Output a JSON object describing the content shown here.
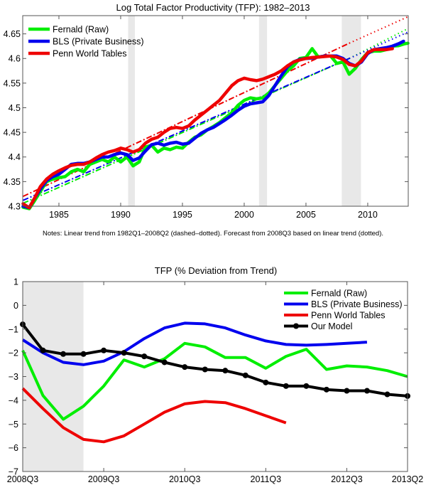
{
  "chart_data": [
    {
      "type": "line",
      "title": "Log Total Factor Productivity (TFP): 1982–2013",
      "xlabel": "",
      "ylabel": "",
      "xlim": [
        1982.07,
        2013.28
      ],
      "ylim": [
        4.3,
        4.687
      ],
      "xticks": [
        1985,
        1990,
        1995,
        2000,
        2005,
        2010
      ],
      "xtick_labels": [
        "1985",
        "1990",
        "1995",
        "2000",
        "2005",
        "2010"
      ],
      "yticks": [
        4.3,
        4.35,
        4.4,
        4.45,
        4.5,
        4.55,
        4.6,
        4.65
      ],
      "ytick_labels": [
        "4.3",
        "4.35",
        "4.4",
        "4.45",
        "4.5",
        "4.55",
        "4.6",
        "4.65"
      ],
      "grid": false,
      "legend_position": "top-left",
      "recessions": [
        [
          1990.6,
          1991.15
        ],
        [
          2001.2,
          2001.85
        ],
        [
          2007.9,
          2009.45
        ]
      ],
      "note": "Notes: Linear trend from 1982Q1–2008Q2 (dashed–dotted). Forecast from 2008Q3 based on linear trend (dotted).",
      "series": [
        {
          "name": "Fernald (Raw)",
          "color": "#00ee00",
          "x": [
            1982.1,
            1982.6,
            1983.0,
            1983.5,
            1984.0,
            1984.5,
            1985.0,
            1985.5,
            1986.0,
            1986.5,
            1987.0,
            1987.5,
            1988.0,
            1988.5,
            1989.0,
            1989.5,
            1990.0,
            1990.5,
            1991.0,
            1991.5,
            1992.0,
            1992.5,
            1993.0,
            1993.5,
            1994.0,
            1994.5,
            1995.0,
            1995.5,
            1996.0,
            1996.5,
            1997.0,
            1997.5,
            1998.0,
            1998.5,
            1999.0,
            1999.5,
            2000.0,
            2000.5,
            2001.0,
            2001.5,
            2002.0,
            2002.5,
            2003.0,
            2003.5,
            2004.0,
            2004.5,
            2005.0,
            2005.5,
            2006.0,
            2006.5,
            2007.0,
            2007.5,
            2008.0,
            2008.5,
            2009.0,
            2009.5,
            2010.0,
            2010.5,
            2011.0,
            2011.5,
            2012.0,
            2012.5,
            2013.0,
            2013.25
          ],
          "values": [
            4.298,
            4.295,
            4.31,
            4.33,
            4.35,
            4.355,
            4.358,
            4.36,
            4.37,
            4.375,
            4.37,
            4.385,
            4.39,
            4.395,
            4.39,
            4.4,
            4.39,
            4.4,
            4.382,
            4.39,
            4.42,
            4.424,
            4.41,
            4.418,
            4.415,
            4.42,
            4.418,
            4.43,
            4.44,
            4.445,
            4.455,
            4.462,
            4.47,
            4.48,
            4.49,
            4.505,
            4.515,
            4.52,
            4.518,
            4.52,
            4.53,
            4.545,
            4.56,
            4.575,
            4.585,
            4.6,
            4.602,
            4.62,
            4.603,
            4.605,
            4.605,
            4.59,
            4.593,
            4.568,
            4.58,
            4.598,
            4.612,
            4.615,
            4.615,
            4.618,
            4.625,
            4.626,
            4.63,
            4.631
          ]
        },
        {
          "name": "BLS (Private Business)",
          "color": "#0000ee",
          "x": [
            1982.1,
            1982.6,
            1983.0,
            1983.5,
            1984.0,
            1984.5,
            1985.0,
            1985.5,
            1986.0,
            1986.5,
            1987.0,
            1987.5,
            1988.0,
            1988.5,
            1989.0,
            1989.5,
            1990.0,
            1990.5,
            1991.0,
            1991.5,
            1992.0,
            1992.5,
            1993.0,
            1993.5,
            1994.0,
            1994.5,
            1995.0,
            1995.5,
            1996.0,
            1996.5,
            1997.0,
            1997.5,
            1998.0,
            1998.5,
            1999.0,
            1999.5,
            2000.0,
            2000.5,
            2001.0,
            2001.5,
            2002.0,
            2002.5,
            2003.0,
            2003.5,
            2004.0,
            2004.5,
            2005.0,
            2005.5,
            2006.0,
            2006.5,
            2007.0,
            2007.5,
            2008.0,
            2008.5,
            2009.0,
            2009.5,
            2010.0,
            2010.5,
            2011.0,
            2011.5,
            2012.0,
            2012.5,
            2012.9
          ],
          "values": [
            4.3,
            4.297,
            4.315,
            4.335,
            4.352,
            4.36,
            4.365,
            4.375,
            4.385,
            4.387,
            4.387,
            4.39,
            4.395,
            4.4,
            4.4,
            4.405,
            4.408,
            4.405,
            4.393,
            4.398,
            4.412,
            4.425,
            4.428,
            4.424,
            4.428,
            4.43,
            4.426,
            4.428,
            4.438,
            4.448,
            4.455,
            4.46,
            4.468,
            4.476,
            4.485,
            4.495,
            4.503,
            4.508,
            4.51,
            4.512,
            4.525,
            4.545,
            4.565,
            4.583,
            4.593,
            4.598,
            4.6,
            4.601,
            4.603,
            4.605,
            4.605,
            4.605,
            4.6,
            4.59,
            4.585,
            4.593,
            4.61,
            4.618,
            4.62,
            4.622,
            4.625,
            4.63,
            4.635
          ]
        },
        {
          "name": "Penn World Tables",
          "color": "#ee0000",
          "x": [
            1982.1,
            1982.6,
            1983.0,
            1983.5,
            1984.0,
            1984.5,
            1985.0,
            1985.5,
            1986.0,
            1986.5,
            1987.0,
            1987.5,
            1988.0,
            1988.5,
            1989.0,
            1989.5,
            1990.0,
            1990.5,
            1991.0,
            1991.5,
            1992.0,
            1992.5,
            1993.0,
            1993.5,
            1994.0,
            1994.5,
            1995.0,
            1995.5,
            1996.0,
            1996.5,
            1997.0,
            1997.5,
            1998.0,
            1998.5,
            1999.0,
            1999.5,
            2000.0,
            2000.5,
            2001.0,
            2001.5,
            2002.0,
            2002.5,
            2003.0,
            2003.5,
            2004.0,
            2004.5,
            2005.0,
            2005.5,
            2006.0,
            2006.5,
            2007.0,
            2007.5,
            2008.0,
            2008.5,
            2009.0,
            2009.5,
            2010.0,
            2010.5,
            2011.0,
            2011.5,
            2012.0
          ],
          "values": [
            4.305,
            4.297,
            4.315,
            4.34,
            4.355,
            4.365,
            4.372,
            4.378,
            4.383,
            4.385,
            4.385,
            4.39,
            4.398,
            4.405,
            4.41,
            4.413,
            4.418,
            4.415,
            4.41,
            4.415,
            4.428,
            4.436,
            4.44,
            4.45,
            4.458,
            4.46,
            4.458,
            4.463,
            4.475,
            4.485,
            4.495,
            4.505,
            4.515,
            4.53,
            4.545,
            4.555,
            4.56,
            4.557,
            4.555,
            4.558,
            4.563,
            4.568,
            4.575,
            4.585,
            4.593,
            4.597,
            4.6,
            4.602,
            4.603,
            4.604,
            4.605,
            4.603,
            4.598,
            4.588,
            4.585,
            4.595,
            4.612,
            4.618,
            4.618,
            4.618,
            4.62
          ]
        }
      ],
      "trends": [
        {
          "name": "Fernald trend",
          "color": "#00ee00",
          "fit_x": [
            1982.1,
            2008.5
          ],
          "fit_values": [
            4.306,
            4.6
          ],
          "forecast_x": [
            2008.5,
            2013.28
          ],
          "forecast_values": [
            4.6,
            4.661
          ]
        },
        {
          "name": "BLS trend",
          "color": "#0000ee",
          "fit_x": [
            1982.1,
            2008.5
          ],
          "fit_values": [
            4.312,
            4.6
          ],
          "forecast_x": [
            2008.5,
            2013.28
          ],
          "forecast_values": [
            4.6,
            4.654
          ]
        },
        {
          "name": "Penn trend",
          "color": "#ee0000",
          "fit_x": [
            1982.1,
            2008.5
          ],
          "fit_values": [
            4.32,
            4.631
          ],
          "forecast_x": [
            2008.5,
            2013.28
          ],
          "forecast_values": [
            4.631,
            4.685
          ]
        }
      ]
    },
    {
      "type": "line",
      "title": "TFP (% Deviation from Trend)",
      "xlabel": "",
      "ylabel": "",
      "categories": [
        "2008Q3",
        "2008Q4",
        "2009Q1",
        "2009Q2",
        "2009Q3",
        "2009Q4",
        "2010Q1",
        "2010Q2",
        "2010Q3",
        "2010Q4",
        "2011Q1",
        "2011Q2",
        "2011Q3",
        "2011Q4",
        "2012Q1",
        "2012Q2",
        "2012Q3",
        "2012Q4",
        "2013Q1",
        "2013Q2"
      ],
      "xtick_labels": [
        "2008Q3",
        "2009Q3",
        "2010Q3",
        "2011Q3",
        "2012Q3",
        "2013Q2"
      ],
      "xtick_index": [
        0,
        4,
        8,
        12,
        16,
        19
      ],
      "ylim": [
        -7,
        1
      ],
      "yticks": [
        -7,
        -6,
        -5,
        -4,
        -3,
        -2,
        -1,
        0,
        1
      ],
      "ytick_labels": [
        "−7",
        "−6",
        "−5",
        "−4",
        "−3",
        "−2",
        "−1",
        "0",
        "1"
      ],
      "grid": false,
      "legend_position": "top-right",
      "recession_shade": [
        0,
        3
      ],
      "series": [
        {
          "name": "Fernald (Raw)",
          "color": "#00ee00",
          "marker": false,
          "values": [
            -1.9,
            -3.8,
            -4.8,
            -4.25,
            -3.4,
            -2.3,
            -2.6,
            -2.25,
            -1.6,
            -1.75,
            -2.2,
            -2.2,
            -2.65,
            -2.15,
            -1.85,
            -2.7,
            -2.55,
            -2.6,
            -2.75,
            -3.0
          ]
        },
        {
          "name": "BLS (Private Business)",
          "color": "#0000ee",
          "marker": false,
          "values": [
            -1.45,
            -2.0,
            -2.4,
            -2.5,
            -2.35,
            -1.95,
            -1.4,
            -0.95,
            -0.75,
            -0.78,
            -0.95,
            -1.25,
            -1.5,
            -1.65,
            -1.68,
            -1.65,
            -1.6,
            -1.55,
            null,
            null
          ]
        },
        {
          "name": "Penn World Tables",
          "color": "#ee0000",
          "marker": false,
          "values": [
            -3.5,
            -4.35,
            -5.15,
            -5.65,
            -5.75,
            -5.5,
            -5.0,
            -4.5,
            -4.15,
            -4.05,
            -4.1,
            -4.35,
            -4.65,
            -4.95,
            null,
            null,
            null,
            null,
            null,
            null
          ]
        },
        {
          "name": "Our Model",
          "color": "#000000",
          "marker": true,
          "values": [
            -0.8,
            -1.9,
            -2.05,
            -2.05,
            -1.9,
            -2.0,
            -2.15,
            -2.4,
            -2.6,
            -2.7,
            -2.75,
            -2.95,
            -3.25,
            -3.4,
            -3.4,
            -3.55,
            -3.6,
            -3.6,
            -3.75,
            -3.82
          ]
        }
      ]
    }
  ]
}
